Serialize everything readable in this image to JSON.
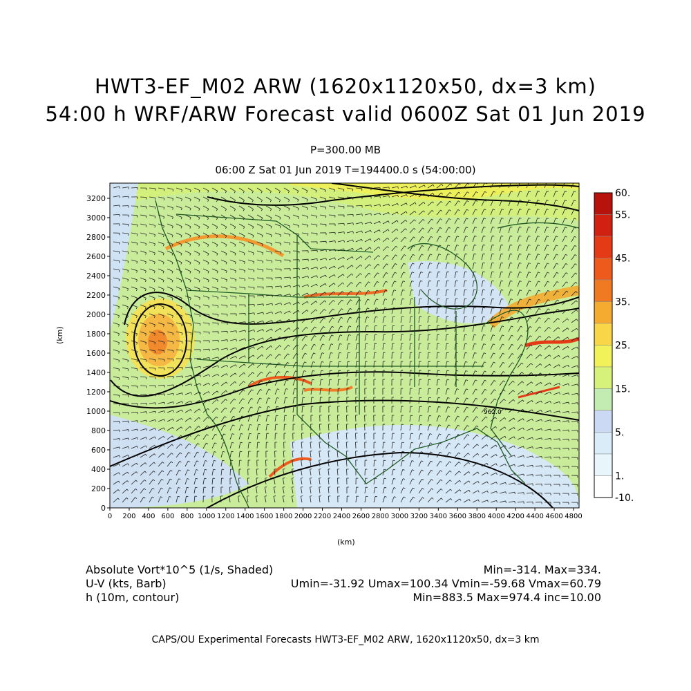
{
  "title": {
    "line1": "HWT3-EF_M02 ARW (1620x1120x50, dx=3 km)",
    "line2": "54:00 h WRF/ARW Forecast valid 0600Z Sat 01 Jun 2019",
    "level": "P=300.00 MB",
    "valid_time": "06:00 Z Sat 01 Jun 2019    T=194400.0 s (54:00:00)"
  },
  "axes": {
    "xlabel": "(km)",
    "ylabel": "(km)",
    "x_ticks": [
      "0",
      "200",
      "400",
      "600",
      "800",
      "1000",
      "1200",
      "1400",
      "1600",
      "1800",
      "2000",
      "2200",
      "2400",
      "2600",
      "2800",
      "3000",
      "3200",
      "3400",
      "3600",
      "3800",
      "4000",
      "4200",
      "4400",
      "4600",
      "4800"
    ],
    "y_ticks": [
      "0",
      "200",
      "400",
      "600",
      "800",
      "1000",
      "1200",
      "1400",
      "1600",
      "1800",
      "2000",
      "2200",
      "2400",
      "2600",
      "2800",
      "3000",
      "3200"
    ]
  },
  "colorbar": {
    "labels": [
      "60.",
      "55.",
      "45.",
      "35.",
      "25.",
      "15.",
      "5.",
      "1.",
      "-10."
    ],
    "colors": [
      "#ffffff",
      "#e8f6fb",
      "#d9ecf8",
      "#ccd9f4",
      "#c3ecb2",
      "#d6f27a",
      "#f1f25a",
      "#f8d647",
      "#f4ab30",
      "#f07a22",
      "#ee5a1c",
      "#e53a16",
      "#d22012",
      "#b8120c"
    ]
  },
  "contour_label": "962.0",
  "info": {
    "field1_label": "Absolute Vort*10^5 (1/s, Shaded)",
    "field1_stats": "Min=-314.  Max=334.",
    "field2_label": "U-V (kts, Barb)",
    "field2_stats": "Umin=-31.92  Umax=100.34  Vmin=-59.68  Vmax=60.79",
    "field3_label": "h (10m, contour)",
    "field3_stats": "Min=883.5  Max=974.4  inc=10.00"
  },
  "credit": "CAPS/OU Experimental Forecasts   HWT3-EF_M02 ARW, 1620x1120x50, dx=3 km"
}
